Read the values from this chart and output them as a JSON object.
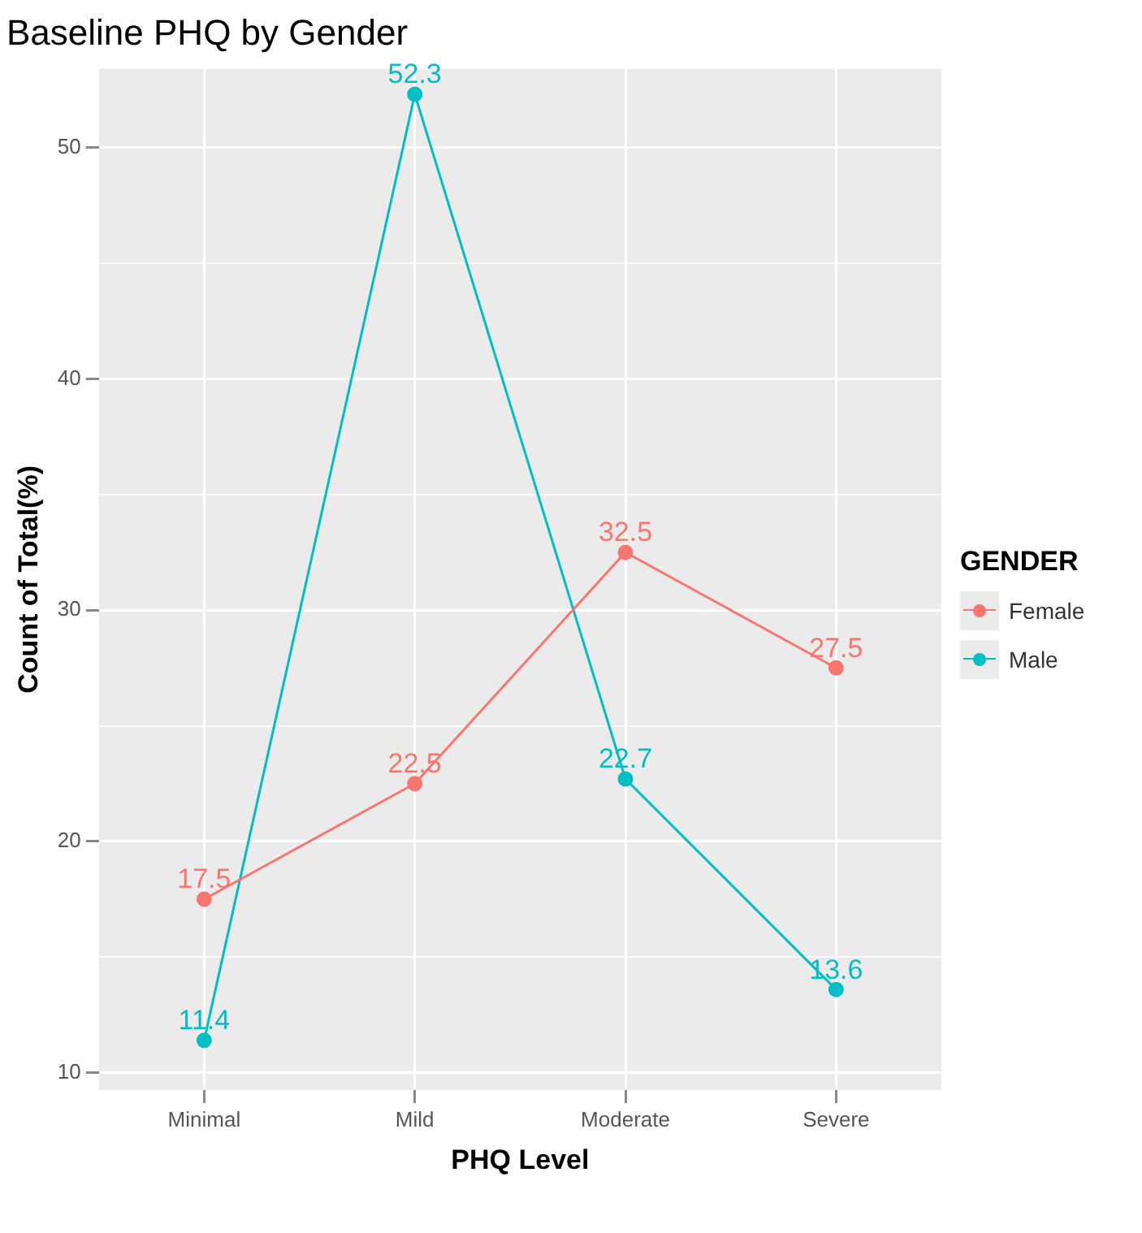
{
  "chart_data": {
    "type": "line",
    "title": "Baseline PHQ by Gender",
    "xlabel": "PHQ Level",
    "ylabel": "Count of Total(%)",
    "legend_title": "GENDER",
    "categories": [
      "Minimal",
      "Mild",
      "Moderate",
      "Severe"
    ],
    "series": [
      {
        "name": "Female",
        "color": "#f8766d",
        "values": [
          17.5,
          22.5,
          32.5,
          27.5
        ]
      },
      {
        "name": "Male",
        "color": "#00bfc4",
        "values": [
          11.4,
          52.3,
          22.7,
          13.6
        ]
      }
    ],
    "ylim": [
      9.25,
      53.4
    ],
    "yticks": [
      10,
      {
        "value": 15,
        "label": null
      },
      20,
      {
        "value": 25,
        "label": null
      },
      30,
      {
        "value": 35,
        "label": null
      },
      40,
      {
        "value": 45,
        "label": null
      },
      50
    ],
    "grid": true,
    "legend": "right",
    "marker": "circle",
    "line_style": "solid",
    "data_labels": true
  }
}
